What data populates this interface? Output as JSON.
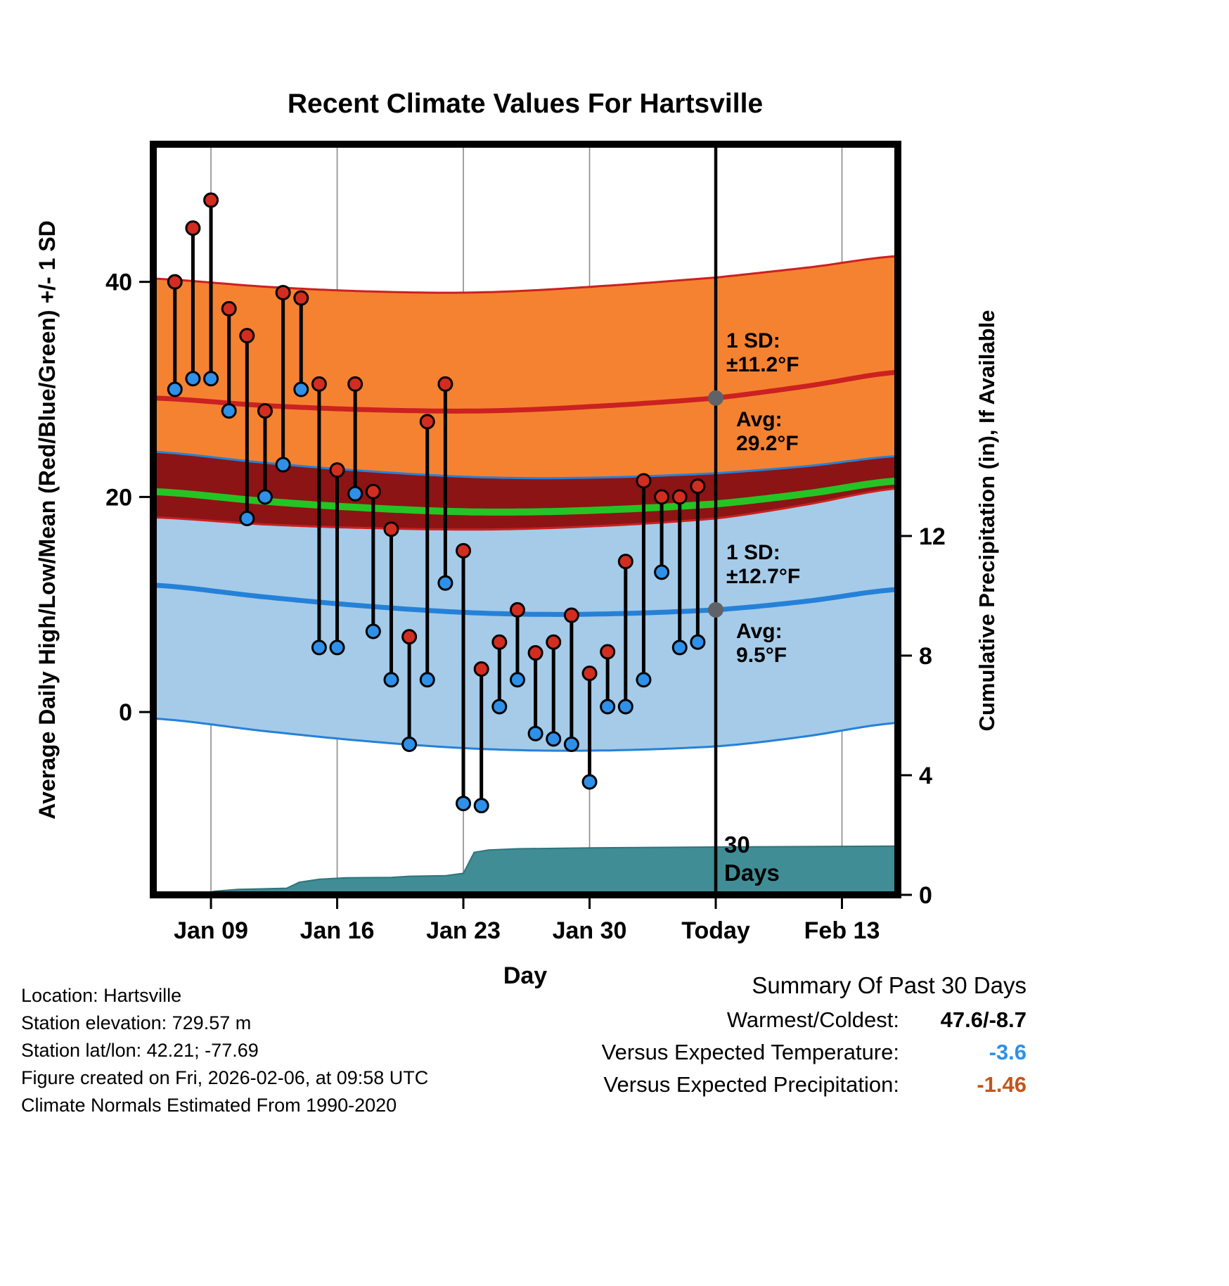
{
  "chart_data": {
    "type": "line",
    "title": "Recent Climate Values For Hartsville",
    "xlabel": "Day",
    "ylabel_left": "Average Daily High/Low/Mean (Red/Blue/Green) +/- 1 SD",
    "ylabel_right": "Cumulative Precipitation (in), If Available",
    "x_domain": [
      -0.2,
      41.1
    ],
    "x_ticks": [
      {
        "day": 3,
        "label": "Jan 09"
      },
      {
        "day": 10,
        "label": "Jan 16"
      },
      {
        "day": 17,
        "label": "Jan 23"
      },
      {
        "day": 24,
        "label": "Jan 30"
      },
      {
        "day": 31,
        "label": "Today"
      },
      {
        "day": 38,
        "label": "Feb 13"
      }
    ],
    "today_day": 31,
    "y_left": {
      "range": [
        -17.0,
        52.8
      ],
      "ticks": [
        {
          "value": 0,
          "label": "0"
        },
        {
          "value": 20,
          "label": "20"
        },
        {
          "value": 40,
          "label": "40"
        }
      ]
    },
    "y_right": {
      "range": [
        0,
        25.1
      ],
      "ticks": [
        {
          "value": 0,
          "label": "0"
        },
        {
          "value": 4,
          "label": "4"
        },
        {
          "value": 8,
          "label": "8"
        },
        {
          "value": 12,
          "label": "12"
        }
      ]
    },
    "daily": {
      "days": [
        1,
        2,
        3,
        4,
        5,
        6,
        7,
        8,
        9,
        10,
        11,
        12,
        13,
        14,
        15,
        16,
        17,
        18,
        19,
        20,
        21,
        22,
        23,
        24,
        25,
        26,
        27,
        28,
        29,
        30
      ],
      "high": [
        40,
        45,
        47.6,
        37.5,
        35,
        28,
        39,
        38.5,
        30.5,
        22.5,
        30.5,
        20.5,
        17,
        7,
        27,
        30.5,
        15,
        4,
        6.5,
        9.5,
        5.5,
        6.5,
        9,
        3.6,
        5.6,
        14,
        21.5,
        20,
        20,
        21
      ],
      "low": [
        30,
        31,
        31,
        28,
        18,
        20,
        23,
        30,
        6,
        6,
        20.3,
        7.5,
        3,
        -3,
        3,
        12,
        -8.5,
        -8.7,
        0.5,
        3,
        -2,
        -2.5,
        -3,
        -6.5,
        0.5,
        0.5,
        3,
        13,
        6,
        6.5
      ]
    },
    "normals": {
      "high_avg": [
        [
          -0.2,
          29.2
        ],
        [
          6,
          28.5
        ],
        [
          12,
          28.1
        ],
        [
          18,
          28.0
        ],
        [
          24,
          28.4
        ],
        [
          31,
          29.2
        ],
        [
          36,
          30.3
        ],
        [
          41.1,
          31.6
        ]
      ],
      "high_sd": [
        [
          -0.2,
          11.1
        ],
        [
          15,
          11.0
        ],
        [
          31,
          11.2
        ],
        [
          41.1,
          10.8
        ]
      ],
      "low_avg": [
        [
          -0.2,
          11.8
        ],
        [
          6,
          10.7
        ],
        [
          12,
          9.8
        ],
        [
          18,
          9.2
        ],
        [
          24,
          9.1
        ],
        [
          31,
          9.5
        ],
        [
          36,
          10.3
        ],
        [
          41.1,
          11.4
        ]
      ],
      "low_sd": [
        [
          -0.2,
          12.4
        ],
        [
          15,
          12.6
        ],
        [
          31,
          12.7
        ],
        [
          41.1,
          12.4
        ]
      ]
    },
    "precip": [
      [
        2.3,
        0.0
      ],
      [
        3.2,
        0.12
      ],
      [
        4.5,
        0.18
      ],
      [
        7.2,
        0.22
      ],
      [
        7.9,
        0.42
      ],
      [
        9,
        0.52
      ],
      [
        10.5,
        0.57
      ],
      [
        13,
        0.58
      ],
      [
        14,
        0.62
      ],
      [
        16,
        0.64
      ],
      [
        17,
        0.72
      ],
      [
        17.6,
        1.42
      ],
      [
        18.4,
        1.5
      ],
      [
        20,
        1.54
      ],
      [
        24,
        1.57
      ],
      [
        31,
        1.6
      ],
      [
        41.1,
        1.63
      ]
    ],
    "annotations": {
      "high": {
        "dot_day": 31,
        "dot_value": 29.2,
        "sd_lines": [
          "1 SD:",
          "±11.2°F"
        ],
        "avg_lines": [
          "Avg:",
          "29.2°F"
        ]
      },
      "low": {
        "dot_day": 31,
        "dot_value": 9.5,
        "sd_lines": [
          "1 SD:",
          "±12.7°F"
        ],
        "avg_lines": [
          "Avg:",
          "9.5°F"
        ]
      },
      "period": [
        "30",
        "Days"
      ]
    },
    "colors": {
      "high_band": "#f58231",
      "high_line": "#cb2121",
      "low_band": "#a5cbe8",
      "low_line": "#2581d8",
      "overlap_band": "#8c1414",
      "mean_line": "#25c425",
      "precip_fill": "#408d96",
      "precip_edge": "#2f747d",
      "high_dot": "#d22d20",
      "low_dot": "#2e90e8",
      "annotation": "#5f6368",
      "today_line": "#000000"
    }
  },
  "footer": {
    "lines": [
      "Location: Hartsville",
      "Station elevation: 729.57 m",
      "Station lat/lon: 42.21; -77.69",
      "Figure created on Fri, 2026-02-06, at 09:58 UTC",
      "Climate Normals Estimated From 1990-2020"
    ],
    "summary": {
      "title": "Summary Of Past 30 Days",
      "rows": [
        {
          "label": "Warmest/Coldest:",
          "value": "47.6/-8.7",
          "color": "#000000"
        },
        {
          "label": "Versus Expected Temperature:",
          "value": "-3.6",
          "color": "#2e90e8"
        },
        {
          "label": "Versus Expected Precipitation:",
          "value": "-1.46",
          "color": "#c2551c"
        }
      ]
    }
  }
}
